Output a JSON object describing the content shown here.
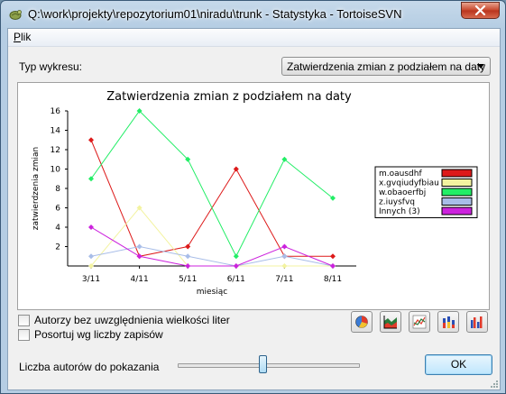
{
  "window": {
    "title": "Q:\\work\\projekty\\repozytorium01\\niradu\\trunk - Statystyka - TortoiseSVN"
  },
  "menu": {
    "file_underline": "P",
    "file_rest": "lik"
  },
  "chart_type": {
    "label": "Typ wykresu:",
    "selected": "Zatwierdzenia zmian z podziałem na daty"
  },
  "chart_data": {
    "type": "line",
    "title": "Zatwierdzenia zmian z podziałem na daty",
    "xlabel": "miesiąc",
    "ylabel": "zatwierdzenia zmian",
    "ylim": [
      0,
      16
    ],
    "yticks": [
      2,
      4,
      6,
      8,
      10,
      12,
      14,
      16
    ],
    "categories": [
      "3/11",
      "4/11",
      "5/11",
      "6/11",
      "7/11",
      "8/11"
    ],
    "legend_position": "right",
    "series": [
      {
        "name": "m.oausdhf",
        "color": "#dd1a1a",
        "values": [
          13,
          1,
          2,
          10,
          1,
          1
        ]
      },
      {
        "name": "x.gvqiudyfbiau",
        "color": "#f3f3a0",
        "values": [
          0,
          6,
          0,
          0,
          0,
          0
        ]
      },
      {
        "name": "w.obaoerfbj",
        "color": "#22ee66",
        "values": [
          9,
          16,
          11,
          1,
          11,
          7
        ]
      },
      {
        "name": "z.iuysfvq",
        "color": "#a8bde8",
        "values": [
          1,
          2,
          1,
          0,
          1,
          0
        ]
      },
      {
        "name": "Innych (3)",
        "color": "#cc22dd",
        "values": [
          4,
          1,
          0,
          0,
          2,
          0
        ]
      }
    ]
  },
  "options": {
    "case_insensitive": "Autorzy bez uwzględnienia wielkości liter",
    "sort_by_commits": "Posortuj wg liczby zapisów"
  },
  "authors": {
    "label": "Liczba autorów do pokazania",
    "slider_fraction": 0.47
  },
  "ok_label": "OK"
}
